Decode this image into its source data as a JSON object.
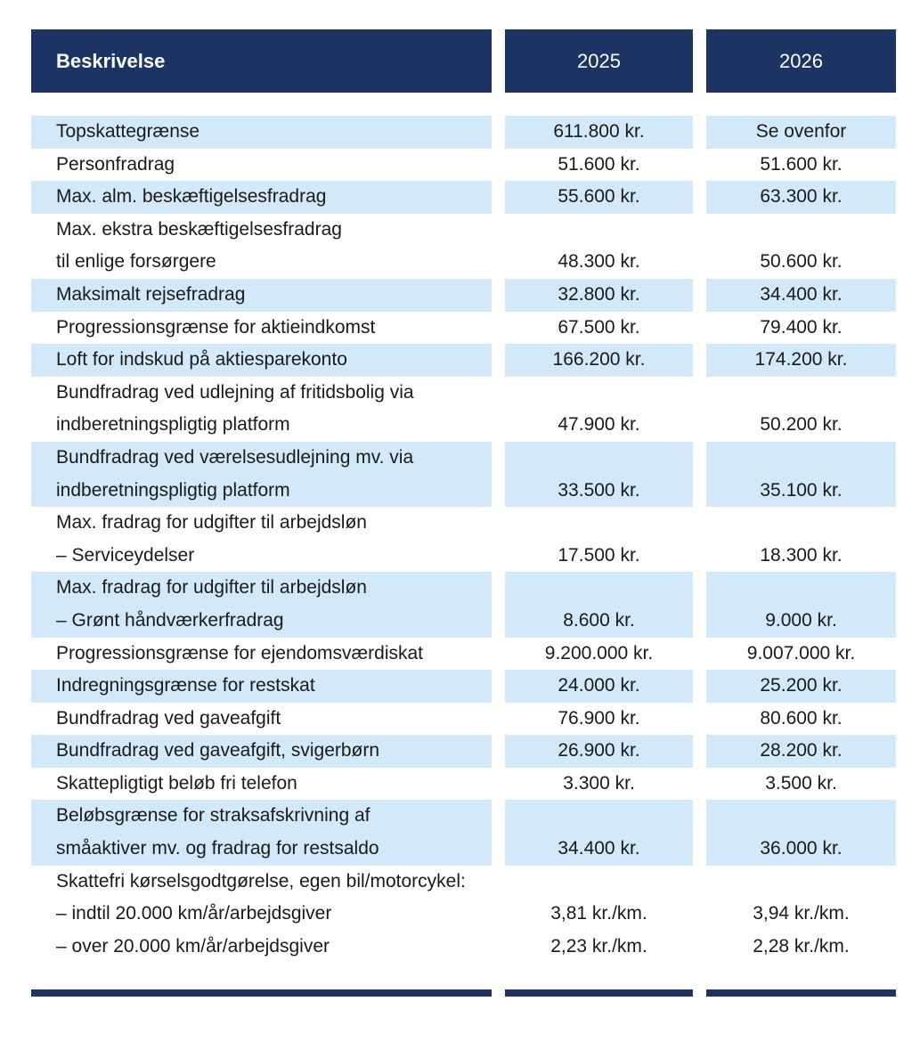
{
  "colors": {
    "header_bg": "#1c3464",
    "row_shaded_bg": "#d1e9f8",
    "text": "#1a1a1a",
    "header_text": "#ffffff"
  },
  "table": {
    "columns": [
      "Beskrivelse",
      "2025",
      "2026"
    ],
    "rows": [
      {
        "shaded": true,
        "desc": [
          "Topskattegrænse"
        ],
        "v2025": [
          "611.800 kr."
        ],
        "v2026": [
          "Se ovenfor"
        ]
      },
      {
        "shaded": false,
        "desc": [
          "Personfradrag"
        ],
        "v2025": [
          "51.600 kr."
        ],
        "v2026": [
          "51.600 kr."
        ]
      },
      {
        "shaded": true,
        "desc": [
          "Max. alm. beskæftigelsesfradrag"
        ],
        "v2025": [
          "55.600 kr."
        ],
        "v2026": [
          "63.300 kr."
        ]
      },
      {
        "shaded": false,
        "desc": [
          "Max. ekstra beskæftigelsesfradrag",
          "til enlige forsørgere"
        ],
        "v2025": [
          "",
          "48.300 kr."
        ],
        "v2026": [
          "",
          "50.600 kr."
        ]
      },
      {
        "shaded": true,
        "desc": [
          "Maksimalt rejsefradrag"
        ],
        "v2025": [
          "32.800 kr."
        ],
        "v2026": [
          "34.400 kr."
        ]
      },
      {
        "shaded": false,
        "desc": [
          "Progressionsgrænse for aktieindkomst"
        ],
        "v2025": [
          "67.500 kr."
        ],
        "v2026": [
          "79.400 kr."
        ]
      },
      {
        "shaded": true,
        "desc": [
          "Loft for indskud på aktiesparekonto"
        ],
        "v2025": [
          "166.200 kr."
        ],
        "v2026": [
          "174.200 kr."
        ]
      },
      {
        "shaded": false,
        "desc": [
          "Bundfradrag ved udlejning af fritidsbolig via",
          "indberetningspligtig platform"
        ],
        "v2025": [
          "",
          "47.900 kr."
        ],
        "v2026": [
          "",
          "50.200 kr."
        ]
      },
      {
        "shaded": true,
        "desc": [
          "Bundfradrag ved værelsesudlejning mv. via",
          "indberetningspligtig platform"
        ],
        "v2025": [
          "",
          "33.500 kr."
        ],
        "v2026": [
          "",
          "35.100 kr."
        ]
      },
      {
        "shaded": false,
        "desc": [
          "Max. fradrag for udgifter til arbejdsløn",
          "– Serviceydelser"
        ],
        "v2025": [
          "",
          "17.500 kr."
        ],
        "v2026": [
          "",
          "18.300 kr."
        ]
      },
      {
        "shaded": true,
        "desc": [
          "Max. fradrag for udgifter til arbejdsløn",
          "– Grønt håndværkerfradrag"
        ],
        "v2025": [
          "",
          "8.600 kr."
        ],
        "v2026": [
          "",
          "9.000 kr."
        ]
      },
      {
        "shaded": false,
        "desc": [
          "Progressionsgrænse for ejendomsværdiskat"
        ],
        "v2025": [
          "9.200.000 kr."
        ],
        "v2026": [
          "9.007.000 kr."
        ]
      },
      {
        "shaded": true,
        "desc": [
          "Indregningsgrænse for restskat"
        ],
        "v2025": [
          "24.000 kr."
        ],
        "v2026": [
          "25.200 kr."
        ]
      },
      {
        "shaded": false,
        "desc": [
          "Bundfradrag ved gaveafgift"
        ],
        "v2025": [
          "76.900 kr."
        ],
        "v2026": [
          "80.600 kr."
        ]
      },
      {
        "shaded": true,
        "desc": [
          "Bundfradrag ved gaveafgift, svigerbørn"
        ],
        "v2025": [
          "26.900 kr."
        ],
        "v2026": [
          "28.200 kr."
        ]
      },
      {
        "shaded": false,
        "desc": [
          "Skattepligtigt beløb fri telefon"
        ],
        "v2025": [
          "3.300 kr."
        ],
        "v2026": [
          "3.500 kr."
        ]
      },
      {
        "shaded": true,
        "desc": [
          "Beløbsgrænse for straksafskrivning af",
          "småaktiver mv. og fradrag for restsaldo"
        ],
        "v2025": [
          "",
          "34.400 kr."
        ],
        "v2026": [
          "",
          "36.000 kr."
        ]
      },
      {
        "shaded": false,
        "desc": [
          "Skattefri kørselsgodtgørelse, egen bil/motorcykel:",
          "– indtil 20.000 km/år/arbejdsgiver",
          "– over 20.000 km/år/arbejdsgiver"
        ],
        "v2025": [
          "",
          "3,81 kr./km.",
          "2,23 kr./km."
        ],
        "v2026": [
          "",
          "3,94 kr./km.",
          "2,28 kr./km."
        ]
      }
    ]
  }
}
